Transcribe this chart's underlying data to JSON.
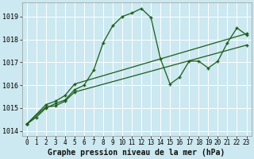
{
  "xlabel": "Graphe pression niveau de la mer (hPa)",
  "bg_color": "#cce8f0",
  "grid_color": "#ffffff",
  "line_color": "#1a5c1a",
  "marker": "+",
  "ylim": [
    1013.8,
    1019.6
  ],
  "xlim": [
    -0.5,
    23.5
  ],
  "yticks": [
    1014,
    1015,
    1016,
    1017,
    1018,
    1019
  ],
  "xticks": [
    0,
    1,
    2,
    3,
    4,
    5,
    6,
    7,
    8,
    9,
    10,
    11,
    12,
    13,
    14,
    15,
    16,
    17,
    18,
    19,
    20,
    21,
    22,
    23
  ],
  "line1_x": [
    0,
    1,
    2,
    3,
    4,
    5,
    6,
    7,
    8,
    9,
    10,
    11,
    12,
    13,
    14,
    15,
    16,
    17,
    18,
    19,
    20,
    21,
    22,
    23
  ],
  "line1_y": [
    1014.3,
    1014.6,
    1015.0,
    1015.2,
    1015.35,
    1015.8,
    1016.0,
    1016.65,
    1017.85,
    1018.6,
    1019.0,
    1019.15,
    1019.35,
    1018.95,
    1017.15,
    1016.05,
    1016.35,
    1017.05,
    1017.05,
    1016.75,
    1017.05,
    1017.85,
    1018.5,
    1018.2
  ],
  "line2_x": [
    0,
    2,
    3,
    4,
    5,
    23
  ],
  "line2_y": [
    1014.3,
    1015.15,
    1015.3,
    1015.55,
    1016.05,
    1018.25
  ],
  "line3_x": [
    0,
    2,
    3,
    4,
    5,
    23
  ],
  "line3_y": [
    1014.3,
    1015.05,
    1015.1,
    1015.3,
    1015.7,
    1017.75
  ],
  "lw": 0.9,
  "ms": 3,
  "mew": 1.0,
  "xlabel_fontsize": 7,
  "tick_fontsize": 5.5
}
